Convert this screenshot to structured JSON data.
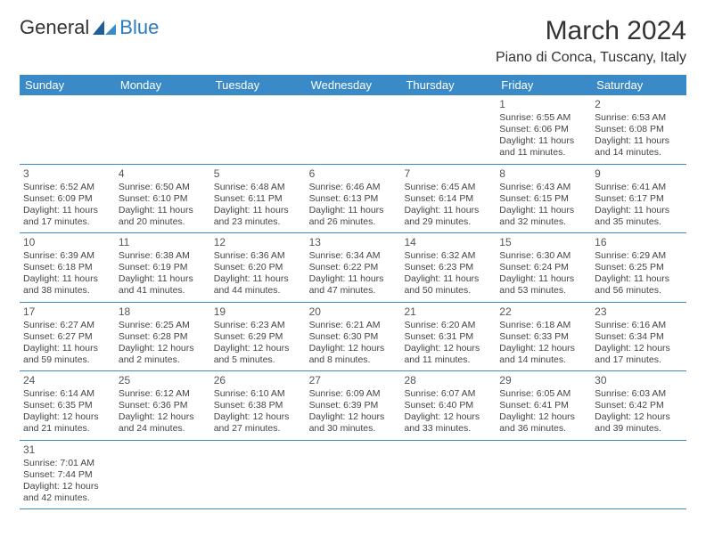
{
  "logo": {
    "part1": "General",
    "part2": "Blue"
  },
  "title": "March 2024",
  "location": "Piano di Conca, Tuscany, Italy",
  "colors": {
    "header_bg": "#3a8ac8",
    "header_text": "#ffffff",
    "row_border": "#3a8ac8",
    "logo_blue": "#2b7bbf",
    "body_bg": "#ffffff",
    "text": "#333333",
    "cell_text": "#444444",
    "first_row_bg": "#eeeeee"
  },
  "typography": {
    "title_fontsize": 30,
    "location_fontsize": 16,
    "dayheader_fontsize": 13,
    "daynum_fontsize": 12,
    "cell_fontsize": 10.5
  },
  "day_headers": [
    "Sunday",
    "Monday",
    "Tuesday",
    "Wednesday",
    "Thursday",
    "Friday",
    "Saturday"
  ],
  "weeks": [
    [
      {
        "day": "",
        "sunrise": "",
        "sunset": "",
        "daylight1": "",
        "daylight2": ""
      },
      {
        "day": "",
        "sunrise": "",
        "sunset": "",
        "daylight1": "",
        "daylight2": ""
      },
      {
        "day": "",
        "sunrise": "",
        "sunset": "",
        "daylight1": "",
        "daylight2": ""
      },
      {
        "day": "",
        "sunrise": "",
        "sunset": "",
        "daylight1": "",
        "daylight2": ""
      },
      {
        "day": "",
        "sunrise": "",
        "sunset": "",
        "daylight1": "",
        "daylight2": ""
      },
      {
        "day": "1",
        "sunrise": "Sunrise: 6:55 AM",
        "sunset": "Sunset: 6:06 PM",
        "daylight1": "Daylight: 11 hours",
        "daylight2": "and 11 minutes."
      },
      {
        "day": "2",
        "sunrise": "Sunrise: 6:53 AM",
        "sunset": "Sunset: 6:08 PM",
        "daylight1": "Daylight: 11 hours",
        "daylight2": "and 14 minutes."
      }
    ],
    [
      {
        "day": "3",
        "sunrise": "Sunrise: 6:52 AM",
        "sunset": "Sunset: 6:09 PM",
        "daylight1": "Daylight: 11 hours",
        "daylight2": "and 17 minutes."
      },
      {
        "day": "4",
        "sunrise": "Sunrise: 6:50 AM",
        "sunset": "Sunset: 6:10 PM",
        "daylight1": "Daylight: 11 hours",
        "daylight2": "and 20 minutes."
      },
      {
        "day": "5",
        "sunrise": "Sunrise: 6:48 AM",
        "sunset": "Sunset: 6:11 PM",
        "daylight1": "Daylight: 11 hours",
        "daylight2": "and 23 minutes."
      },
      {
        "day": "6",
        "sunrise": "Sunrise: 6:46 AM",
        "sunset": "Sunset: 6:13 PM",
        "daylight1": "Daylight: 11 hours",
        "daylight2": "and 26 minutes."
      },
      {
        "day": "7",
        "sunrise": "Sunrise: 6:45 AM",
        "sunset": "Sunset: 6:14 PM",
        "daylight1": "Daylight: 11 hours",
        "daylight2": "and 29 minutes."
      },
      {
        "day": "8",
        "sunrise": "Sunrise: 6:43 AM",
        "sunset": "Sunset: 6:15 PM",
        "daylight1": "Daylight: 11 hours",
        "daylight2": "and 32 minutes."
      },
      {
        "day": "9",
        "sunrise": "Sunrise: 6:41 AM",
        "sunset": "Sunset: 6:17 PM",
        "daylight1": "Daylight: 11 hours",
        "daylight2": "and 35 minutes."
      }
    ],
    [
      {
        "day": "10",
        "sunrise": "Sunrise: 6:39 AM",
        "sunset": "Sunset: 6:18 PM",
        "daylight1": "Daylight: 11 hours",
        "daylight2": "and 38 minutes."
      },
      {
        "day": "11",
        "sunrise": "Sunrise: 6:38 AM",
        "sunset": "Sunset: 6:19 PM",
        "daylight1": "Daylight: 11 hours",
        "daylight2": "and 41 minutes."
      },
      {
        "day": "12",
        "sunrise": "Sunrise: 6:36 AM",
        "sunset": "Sunset: 6:20 PM",
        "daylight1": "Daylight: 11 hours",
        "daylight2": "and 44 minutes."
      },
      {
        "day": "13",
        "sunrise": "Sunrise: 6:34 AM",
        "sunset": "Sunset: 6:22 PM",
        "daylight1": "Daylight: 11 hours",
        "daylight2": "and 47 minutes."
      },
      {
        "day": "14",
        "sunrise": "Sunrise: 6:32 AM",
        "sunset": "Sunset: 6:23 PM",
        "daylight1": "Daylight: 11 hours",
        "daylight2": "and 50 minutes."
      },
      {
        "day": "15",
        "sunrise": "Sunrise: 6:30 AM",
        "sunset": "Sunset: 6:24 PM",
        "daylight1": "Daylight: 11 hours",
        "daylight2": "and 53 minutes."
      },
      {
        "day": "16",
        "sunrise": "Sunrise: 6:29 AM",
        "sunset": "Sunset: 6:25 PM",
        "daylight1": "Daylight: 11 hours",
        "daylight2": "and 56 minutes."
      }
    ],
    [
      {
        "day": "17",
        "sunrise": "Sunrise: 6:27 AM",
        "sunset": "Sunset: 6:27 PM",
        "daylight1": "Daylight: 11 hours",
        "daylight2": "and 59 minutes."
      },
      {
        "day": "18",
        "sunrise": "Sunrise: 6:25 AM",
        "sunset": "Sunset: 6:28 PM",
        "daylight1": "Daylight: 12 hours",
        "daylight2": "and 2 minutes."
      },
      {
        "day": "19",
        "sunrise": "Sunrise: 6:23 AM",
        "sunset": "Sunset: 6:29 PM",
        "daylight1": "Daylight: 12 hours",
        "daylight2": "and 5 minutes."
      },
      {
        "day": "20",
        "sunrise": "Sunrise: 6:21 AM",
        "sunset": "Sunset: 6:30 PM",
        "daylight1": "Daylight: 12 hours",
        "daylight2": "and 8 minutes."
      },
      {
        "day": "21",
        "sunrise": "Sunrise: 6:20 AM",
        "sunset": "Sunset: 6:31 PM",
        "daylight1": "Daylight: 12 hours",
        "daylight2": "and 11 minutes."
      },
      {
        "day": "22",
        "sunrise": "Sunrise: 6:18 AM",
        "sunset": "Sunset: 6:33 PM",
        "daylight1": "Daylight: 12 hours",
        "daylight2": "and 14 minutes."
      },
      {
        "day": "23",
        "sunrise": "Sunrise: 6:16 AM",
        "sunset": "Sunset: 6:34 PM",
        "daylight1": "Daylight: 12 hours",
        "daylight2": "and 17 minutes."
      }
    ],
    [
      {
        "day": "24",
        "sunrise": "Sunrise: 6:14 AM",
        "sunset": "Sunset: 6:35 PM",
        "daylight1": "Daylight: 12 hours",
        "daylight2": "and 21 minutes."
      },
      {
        "day": "25",
        "sunrise": "Sunrise: 6:12 AM",
        "sunset": "Sunset: 6:36 PM",
        "daylight1": "Daylight: 12 hours",
        "daylight2": "and 24 minutes."
      },
      {
        "day": "26",
        "sunrise": "Sunrise: 6:10 AM",
        "sunset": "Sunset: 6:38 PM",
        "daylight1": "Daylight: 12 hours",
        "daylight2": "and 27 minutes."
      },
      {
        "day": "27",
        "sunrise": "Sunrise: 6:09 AM",
        "sunset": "Sunset: 6:39 PM",
        "daylight1": "Daylight: 12 hours",
        "daylight2": "and 30 minutes."
      },
      {
        "day": "28",
        "sunrise": "Sunrise: 6:07 AM",
        "sunset": "Sunset: 6:40 PM",
        "daylight1": "Daylight: 12 hours",
        "daylight2": "and 33 minutes."
      },
      {
        "day": "29",
        "sunrise": "Sunrise: 6:05 AM",
        "sunset": "Sunset: 6:41 PM",
        "daylight1": "Daylight: 12 hours",
        "daylight2": "and 36 minutes."
      },
      {
        "day": "30",
        "sunrise": "Sunrise: 6:03 AM",
        "sunset": "Sunset: 6:42 PM",
        "daylight1": "Daylight: 12 hours",
        "daylight2": "and 39 minutes."
      }
    ],
    [
      {
        "day": "31",
        "sunrise": "Sunrise: 7:01 AM",
        "sunset": "Sunset: 7:44 PM",
        "daylight1": "Daylight: 12 hours",
        "daylight2": "and 42 minutes."
      },
      {
        "day": "",
        "sunrise": "",
        "sunset": "",
        "daylight1": "",
        "daylight2": ""
      },
      {
        "day": "",
        "sunrise": "",
        "sunset": "",
        "daylight1": "",
        "daylight2": ""
      },
      {
        "day": "",
        "sunrise": "",
        "sunset": "",
        "daylight1": "",
        "daylight2": ""
      },
      {
        "day": "",
        "sunrise": "",
        "sunset": "",
        "daylight1": "",
        "daylight2": ""
      },
      {
        "day": "",
        "sunrise": "",
        "sunset": "",
        "daylight1": "",
        "daylight2": ""
      },
      {
        "day": "",
        "sunrise": "",
        "sunset": "",
        "daylight1": "",
        "daylight2": ""
      }
    ]
  ]
}
